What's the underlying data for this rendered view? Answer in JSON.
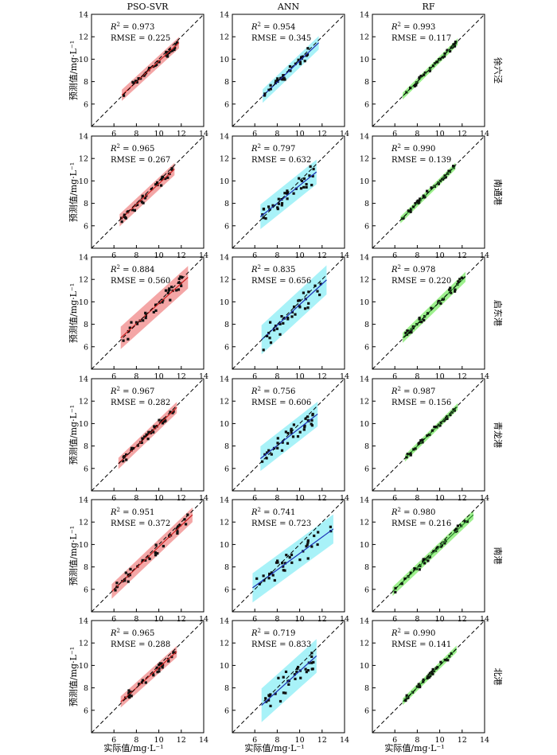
{
  "columns": [
    "PSO-SVR",
    "ANN",
    "RF"
  ],
  "rows": [
    "徐六泾",
    "南通港",
    "启东港",
    "青龙港",
    "南港",
    "北港"
  ],
  "xlabel": "实际值/mg·L⁻¹",
  "ylabel": "预测值/mg·L⁻¹",
  "colors": {
    "PSO-SVR": {
      "band": "#f4a6a6",
      "line": "#cc2222"
    },
    "ANN": {
      "band": "#a8f2f8",
      "line": "#1a2fb5"
    },
    "RF": {
      "band": "#9ef08e",
      "line": "#2a8a2a"
    }
  },
  "chart_data": {
    "type": "scatter",
    "axis_range": [
      4,
      14
    ],
    "ticks": [
      6,
      8,
      10,
      12,
      14
    ],
    "reference_line": "y = x (dashed)",
    "panels": [
      {
        "row": "徐六泾",
        "model": "PSO-SVR",
        "r2": "0.973",
        "rmse": "0.225",
        "x_range": [
          6.7,
          11.8
        ],
        "fit": [
          0.92,
          0.62
        ],
        "band": 0.5
      },
      {
        "row": "徐六泾",
        "model": "ANN",
        "r2": "0.954",
        "rmse": "0.345",
        "x_range": [
          6.7,
          11.7
        ],
        "fit": [
          0.95,
          0.35
        ],
        "band": 0.6
      },
      {
        "row": "徐六泾",
        "model": "RF",
        "r2": "0.993",
        "rmse": "0.117",
        "x_range": [
          6.7,
          11.6
        ],
        "fit": [
          0.99,
          0.08
        ],
        "band": 0.3
      },
      {
        "row": "南通港",
        "model": "PSO-SVR",
        "r2": "0.965",
        "rmse": "0.267",
        "x_range": [
          6.5,
          11.4
        ],
        "fit": [
          0.93,
          0.45
        ],
        "band": 0.55
      },
      {
        "row": "南通港",
        "model": "ANN",
        "r2": "0.797",
        "rmse": "0.632",
        "x_range": [
          6.5,
          11.5
        ],
        "fit": [
          0.8,
          1.6
        ],
        "band": 1.1
      },
      {
        "row": "南通港",
        "model": "RF",
        "r2": "0.990",
        "rmse": "0.139",
        "x_range": [
          6.5,
          11.4
        ],
        "fit": [
          0.98,
          0.15
        ],
        "band": 0.3
      },
      {
        "row": "启东港",
        "model": "PSO-SVR",
        "r2": "0.884",
        "rmse": "0.560",
        "x_range": [
          6.6,
          12.6
        ],
        "fit": [
          0.9,
          0.85
        ],
        "band": 1.0
      },
      {
        "row": "启东港",
        "model": "ANN",
        "r2": "0.835",
        "rmse": "0.656",
        "x_range": [
          6.6,
          12.4
        ],
        "fit": [
          0.92,
          0.55
        ],
        "band": 1.3
      },
      {
        "row": "启东港",
        "model": "RF",
        "r2": "0.978",
        "rmse": "0.220",
        "x_range": [
          6.7,
          12.3
        ],
        "fit": [
          0.97,
          0.3
        ],
        "band": 0.45
      },
      {
        "row": "青龙港",
        "model": "PSO-SVR",
        "r2": "0.967",
        "rmse": "0.282",
        "x_range": [
          6.4,
          11.6
        ],
        "fit": [
          0.96,
          0.3
        ],
        "band": 0.5
      },
      {
        "row": "青龙港",
        "model": "ANN",
        "r2": "0.756",
        "rmse": "0.606",
        "x_range": [
          6.5,
          11.6
        ],
        "fit": [
          0.78,
          1.8
        ],
        "band": 1.1
      },
      {
        "row": "青龙港",
        "model": "RF",
        "r2": "0.987",
        "rmse": "0.156",
        "x_range": [
          6.9,
          11.6
        ],
        "fit": [
          0.98,
          0.15
        ],
        "band": 0.3
      },
      {
        "row": "南港",
        "model": "PSO-SVR",
        "r2": "0.951",
        "rmse": "0.372",
        "x_range": [
          5.8,
          13.0
        ],
        "fit": [
          0.95,
          0.3
        ],
        "band": 0.65
      },
      {
        "row": "南港",
        "model": "ANN",
        "r2": "0.741",
        "rmse": "0.723",
        "x_range": [
          5.8,
          13.0
        ],
        "fit": [
          0.73,
          1.9
        ],
        "band": 1.3
      },
      {
        "row": "南港",
        "model": "RF",
        "r2": "0.980",
        "rmse": "0.216",
        "x_range": [
          5.8,
          13.0
        ],
        "fit": [
          0.95,
          0.3
        ],
        "band": 0.4
      },
      {
        "row": "北港",
        "model": "PSO-SVR",
        "r2": "0.965",
        "rmse": "0.288",
        "x_range": [
          6.6,
          11.6
        ],
        "fit": [
          0.9,
          0.8
        ],
        "band": 0.5
      },
      {
        "row": "北港",
        "model": "ANN",
        "r2": "0.719",
        "rmse": "0.833",
        "x_range": [
          6.6,
          11.5
        ],
        "fit": [
          0.9,
          0.5
        ],
        "band": 1.5
      },
      {
        "row": "北港",
        "model": "RF",
        "r2": "0.990",
        "rmse": "0.141",
        "x_range": [
          6.7,
          11.5
        ],
        "fit": [
          0.98,
          0.2
        ],
        "band": 0.3
      }
    ]
  }
}
